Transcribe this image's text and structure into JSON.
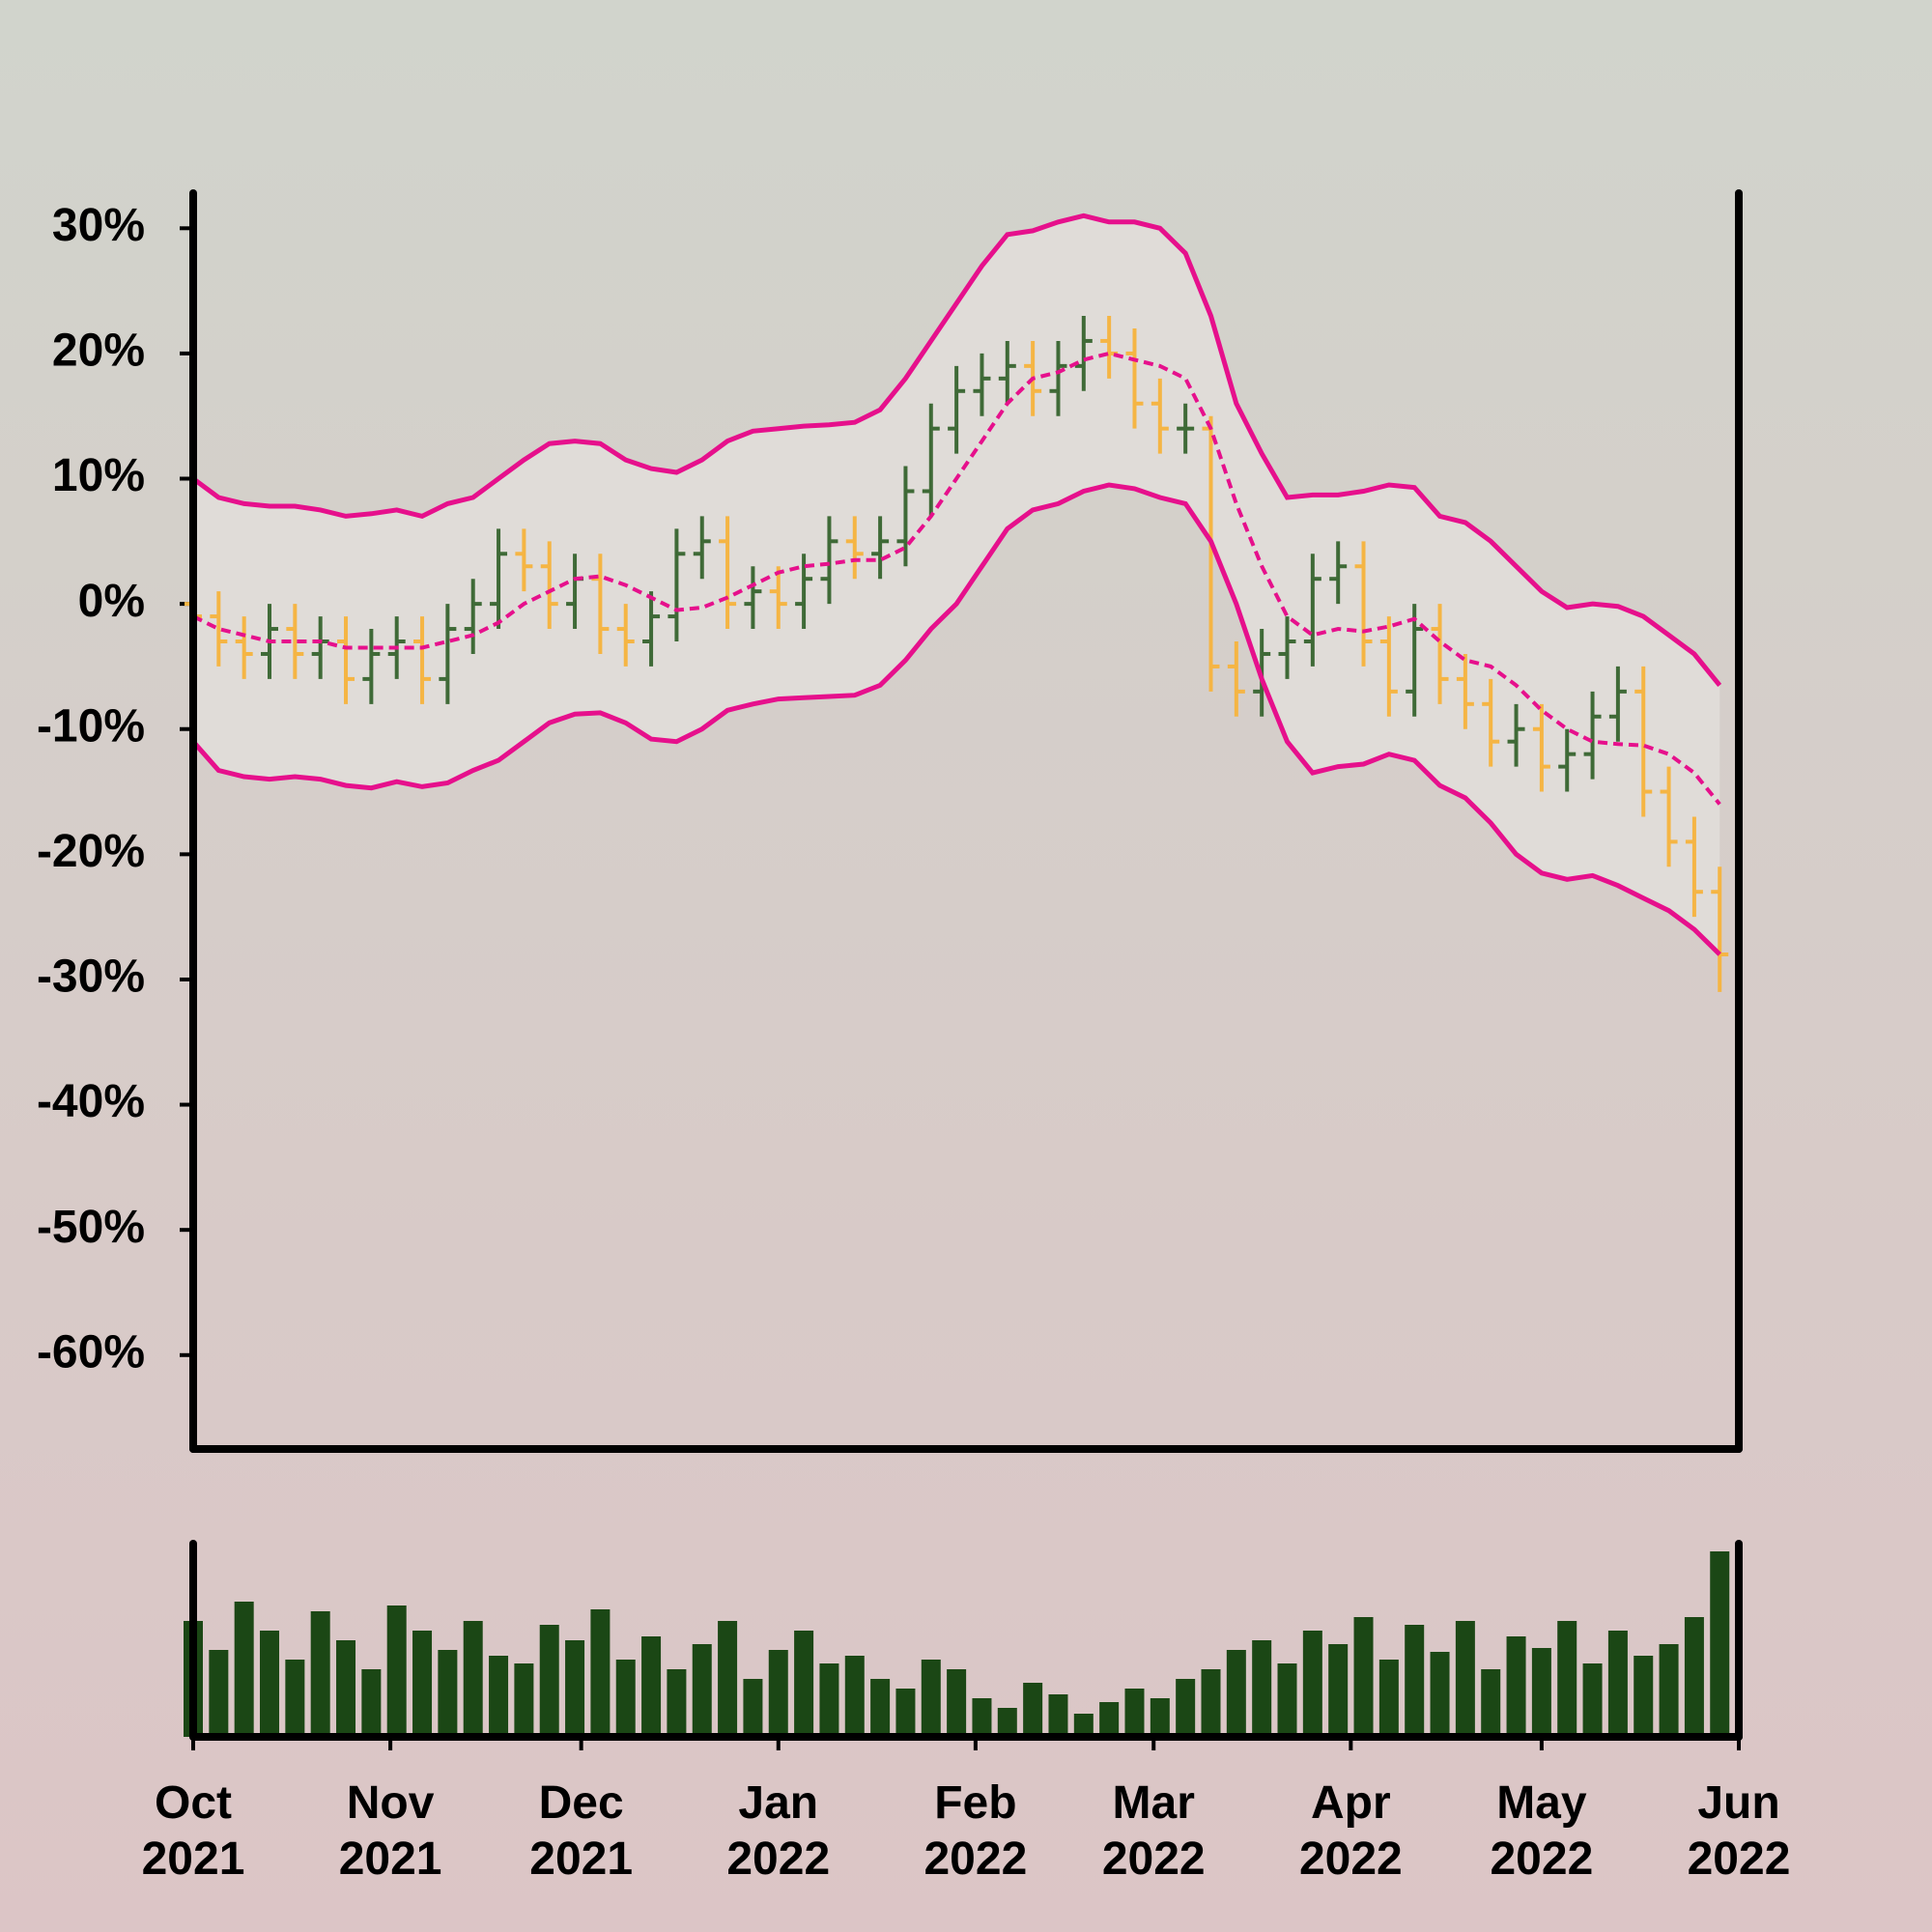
{
  "chart_data": {
    "type": "ohlc",
    "x": [
      "2021-10-01",
      "2021-10-05",
      "2021-10-09",
      "2021-10-13",
      "2021-10-17",
      "2021-10-21",
      "2021-10-25",
      "2021-10-29",
      "2021-11-02",
      "2021-11-06",
      "2021-11-10",
      "2021-11-14",
      "2021-11-18",
      "2021-11-22",
      "2021-11-26",
      "2021-11-30",
      "2021-12-04",
      "2021-12-08",
      "2021-12-12",
      "2021-12-16",
      "2021-12-20",
      "2021-12-24",
      "2021-12-28",
      "2022-01-01",
      "2022-01-05",
      "2022-01-09",
      "2022-01-13",
      "2022-01-17",
      "2022-01-21",
      "2022-01-25",
      "2022-01-29",
      "2022-02-02",
      "2022-02-06",
      "2022-02-10",
      "2022-02-14",
      "2022-02-18",
      "2022-02-22",
      "2022-02-26",
      "2022-03-02",
      "2022-03-06",
      "2022-03-10",
      "2022-03-14",
      "2022-03-18",
      "2022-03-22",
      "2022-03-26",
      "2022-03-30",
      "2022-04-03",
      "2022-04-07",
      "2022-04-11",
      "2022-04-15",
      "2022-04-19",
      "2022-04-23",
      "2022-04-27",
      "2022-05-01",
      "2022-05-05",
      "2022-05-09",
      "2022-05-13",
      "2022-05-17",
      "2022-05-21",
      "2022-05-25",
      "2022-05-29"
    ],
    "open": [
      0,
      -1,
      -3,
      -4,
      -2,
      -4,
      -3,
      -6,
      -4,
      -3,
      -6,
      -2,
      0,
      4,
      3,
      0,
      2,
      -2,
      -3,
      -1,
      4,
      5,
      0,
      1,
      0,
      2,
      5,
      4,
      5,
      9,
      14,
      17,
      18,
      19,
      17,
      19,
      21,
      20,
      16,
      14,
      14,
      -5,
      -7,
      -4,
      -3,
      2,
      3,
      -3,
      -7,
      -2,
      -6,
      -8,
      -11,
      -10,
      -13,
      -12,
      -9,
      -7,
      -15,
      -19,
      -23
    ],
    "high": [
      2,
      1,
      -1,
      0,
      0,
      -1,
      -1,
      -2,
      -1,
      -1,
      0,
      2,
      6,
      6,
      5,
      4,
      4,
      0,
      1,
      6,
      7,
      7,
      3,
      3,
      4,
      7,
      7,
      7,
      11,
      16,
      19,
      20,
      21,
      21,
      21,
      23,
      23,
      22,
      18,
      16,
      15,
      -3,
      -2,
      -1,
      4,
      5,
      5,
      -1,
      0,
      0,
      -4,
      -6,
      -8,
      -8,
      -10,
      -7,
      -5,
      -5,
      -13,
      -17,
      -21
    ],
    "low": [
      -3,
      -5,
      -6,
      -6,
      -6,
      -6,
      -8,
      -8,
      -6,
      -8,
      -8,
      -4,
      -2,
      1,
      -2,
      -2,
      -4,
      -5,
      -5,
      -3,
      2,
      -2,
      -2,
      -2,
      -2,
      0,
      2,
      2,
      3,
      7,
      12,
      15,
      16,
      15,
      15,
      17,
      18,
      14,
      12,
      12,
      -7,
      -9,
      -9,
      -6,
      -5,
      0,
      -5,
      -9,
      -9,
      -8,
      -10,
      -13,
      -13,
      -15,
      -15,
      -14,
      -11,
      -17,
      -21,
      -25,
      -31
    ],
    "close": [
      -1,
      -3,
      -4,
      -2,
      -4,
      -3,
      -6,
      -4,
      -3,
      -6,
      -2,
      0,
      4,
      3,
      0,
      2,
      -2,
      -3,
      -1,
      4,
      5,
      0,
      1,
      0,
      2,
      5,
      4,
      5,
      9,
      14,
      17,
      18,
      19,
      17,
      19,
      21,
      20,
      16,
      14,
      14,
      -5,
      -7,
      -4,
      -3,
      2,
      3,
      -3,
      -7,
      -2,
      -6,
      -8,
      -11,
      -10,
      -13,
      -12,
      -9,
      -7,
      -15,
      -19,
      -23,
      -28
    ],
    "up_color": "#3f6a37",
    "down_color": "#f5b544",
    "bands": {
      "color": "#e6108c",
      "fill": "#e0dcd8",
      "upper": [
        10,
        8.5,
        8,
        7.8,
        7.8,
        7.5,
        7,
        7.2,
        7.5,
        7,
        8,
        8.5,
        10,
        11.5,
        12.8,
        13,
        12.8,
        11.5,
        10.8,
        10.5,
        11.5,
        13,
        13.8,
        14,
        14.2,
        14.3,
        14.5,
        15.5,
        18,
        21,
        24,
        27,
        29.5,
        29.8,
        30.5,
        31,
        30.5,
        30.5,
        30,
        28,
        23,
        16,
        12,
        8.5,
        8.7,
        8.7,
        9,
        9.5,
        9.3,
        7,
        6.5,
        5,
        3,
        1,
        -0.3,
        0,
        -0.2,
        -1,
        -2.5,
        -4,
        -6.5
      ],
      "middle": [
        -1,
        -2,
        -2.5,
        -3,
        -3,
        -3,
        -3.5,
        -3.5,
        -3.5,
        -3.5,
        -3,
        -2.5,
        -1.5,
        0,
        1,
        2,
        2.2,
        1.5,
        0.5,
        -0.5,
        -0.3,
        0.5,
        1.5,
        2.5,
        3,
        3.2,
        3.5,
        3.5,
        4.5,
        7,
        10,
        13,
        16,
        18,
        18.5,
        19.5,
        20,
        19.5,
        19,
        18,
        14,
        8,
        3,
        -1,
        -2.5,
        -2,
        -2.2,
        -1.8,
        -1.2,
        -3,
        -4.5,
        -5,
        -6.5,
        -8.5,
        -10,
        -11,
        -11.2,
        -11.3,
        -12,
        -13.5,
        -16
      ],
      "lower": [
        -11,
        -13.3,
        -13.8,
        -14,
        -13.8,
        -14,
        -14.5,
        -14.7,
        -14.2,
        -14.6,
        -14.3,
        -13.3,
        -12.5,
        -11,
        -9.5,
        -8.8,
        -8.7,
        -9.5,
        -10.8,
        -11,
        -10,
        -8.5,
        -8,
        -7.6,
        -7.5,
        -7.4,
        -7.3,
        -6.5,
        -4.5,
        -2,
        0,
        3,
        6,
        7.5,
        8,
        9,
        9.5,
        9.2,
        8.5,
        8,
        5,
        0,
        -6,
        -11,
        -13.5,
        -13,
        -12.8,
        -12,
        -12.5,
        -14.5,
        -15.5,
        -17.5,
        -20,
        -21.5,
        -22,
        -21.7,
        -22.5,
        -23.5,
        -24.5,
        -26,
        -28
      ]
    },
    "volume": [
      60,
      45,
      70,
      55,
      40,
      65,
      50,
      35,
      68,
      55,
      45,
      60,
      42,
      38,
      58,
      50,
      66,
      40,
      52,
      35,
      48,
      60,
      30,
      45,
      55,
      38,
      42,
      30,
      25,
      40,
      35,
      20,
      15,
      28,
      22,
      12,
      18,
      25,
      20,
      30,
      35,
      45,
      50,
      38,
      55,
      48,
      62,
      40,
      58,
      44,
      60,
      35,
      52,
      46,
      60,
      38,
      55,
      42,
      48,
      62,
      96
    ],
    "volume_color": "#1b4715",
    "volume_ylim": [
      0,
      100
    ],
    "xlim": [
      "2021-10-01",
      "2022-06-01"
    ],
    "xticks": [
      {
        "value": "2021-10-01",
        "label": "Oct\n2021"
      },
      {
        "value": "2021-11-01",
        "label": "Nov\n2021"
      },
      {
        "value": "2021-12-01",
        "label": "Dec\n2021"
      },
      {
        "value": "2022-01-01",
        "label": "Jan\n2022"
      },
      {
        "value": "2022-02-01",
        "label": "Feb\n2022"
      },
      {
        "value": "2022-03-01",
        "label": "Mar\n2022"
      },
      {
        "value": "2022-04-01",
        "label": "Apr\n2022"
      },
      {
        "value": "2022-05-01",
        "label": "May\n2022"
      },
      {
        "value": "2022-06-01",
        "label": "Jun\n2022"
      }
    ],
    "ylim": [
      -67.5,
      32.8
    ],
    "yticks": [
      {
        "value": 30,
        "label": "30%"
      },
      {
        "value": 20,
        "label": "20%"
      },
      {
        "value": 10,
        "label": "10%"
      },
      {
        "value": 0,
        "label": "0%"
      },
      {
        "value": -10,
        "label": "-10%"
      },
      {
        "value": -20,
        "label": "-20%"
      },
      {
        "value": -30,
        "label": "-30%"
      },
      {
        "value": -40,
        "label": "-40%"
      },
      {
        "value": -50,
        "label": "-50%"
      },
      {
        "value": -60,
        "label": "-60%"
      }
    ]
  }
}
